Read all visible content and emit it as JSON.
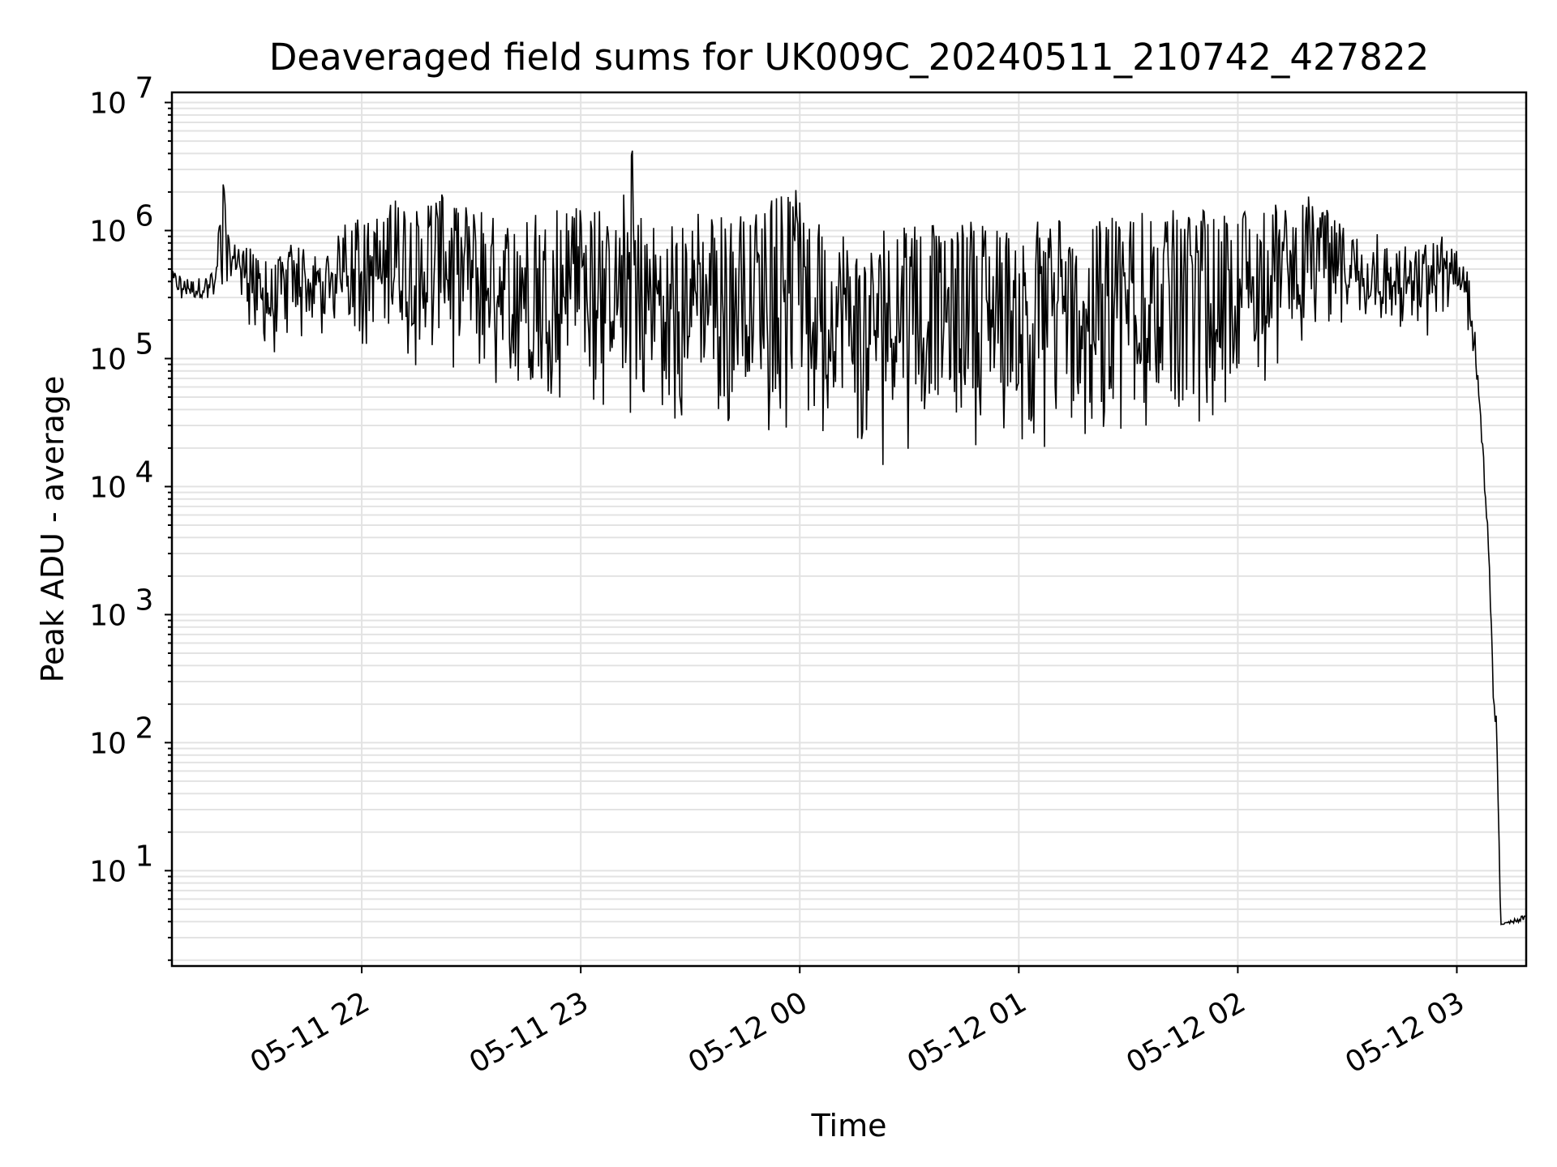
{
  "chart_data": {
    "type": "line",
    "title": "Deaveraged field sums for UK009C_20240511_210742_427822",
    "xlabel": "Time",
    "ylabel": "Peak ADU - average",
    "xscale": "time",
    "yscale": "log",
    "xlim": [
      "2024-05-11 21:08",
      "2024-05-12 03:19"
    ],
    "ylim": [
      1.8,
      12000000
    ],
    "grid": true,
    "x_ticks": [
      {
        "time": "2024-05-11 22:00",
        "label": "05-11 22"
      },
      {
        "time": "2024-05-11 23:00",
        "label": "05-11 23"
      },
      {
        "time": "2024-05-12 00:00",
        "label": "05-12 00"
      },
      {
        "time": "2024-05-12 01:00",
        "label": "05-12 01"
      },
      {
        "time": "2024-05-12 02:00",
        "label": "05-12 02"
      },
      {
        "time": "2024-05-12 03:00",
        "label": "05-12 03"
      }
    ],
    "y_ticks": [
      {
        "value": 10,
        "base": "10",
        "exp": "1"
      },
      {
        "value": 100,
        "base": "10",
        "exp": "2"
      },
      {
        "value": 1000,
        "base": "10",
        "exp": "3"
      },
      {
        "value": 10000,
        "base": "10",
        "exp": "4"
      },
      {
        "value": 100000,
        "base": "10",
        "exp": "5"
      },
      {
        "value": 1000000,
        "base": "10",
        "exp": "6"
      },
      {
        "value": 10000000,
        "base": "10",
        "exp": "7"
      }
    ],
    "series": [
      {
        "color": "#000000",
        "upper_envelope": [
          [
            "2024-05-11 21:08",
            500000
          ],
          [
            "2024-05-11 21:12",
            420000
          ],
          [
            "2024-05-11 21:16",
            450000
          ],
          [
            "2024-05-11 21:20",
            480000
          ],
          [
            "2024-05-11 21:22",
            3700000
          ],
          [
            "2024-05-11 21:24",
            650000
          ],
          [
            "2024-05-11 21:26",
            1000000
          ],
          [
            "2024-05-11 21:30",
            700000
          ],
          [
            "2024-05-11 21:35",
            600000
          ],
          [
            "2024-05-11 21:40",
            800000
          ],
          [
            "2024-05-11 21:45",
            700000
          ],
          [
            "2024-05-11 21:50",
            800000
          ],
          [
            "2024-05-11 21:55",
            1100000
          ],
          [
            "2024-05-11 22:00",
            1400000
          ],
          [
            "2024-05-11 22:05",
            1400000
          ],
          [
            "2024-05-11 22:08",
            1600000
          ],
          [
            "2024-05-11 22:12",
            2800000
          ],
          [
            "2024-05-11 22:16",
            1500000
          ],
          [
            "2024-05-11 22:20",
            2100000
          ],
          [
            "2024-05-11 22:30",
            1600000
          ],
          [
            "2024-05-11 22:40",
            1600000
          ],
          [
            "2024-05-11 22:50",
            1600000
          ],
          [
            "2024-05-11 23:00",
            1500000
          ],
          [
            "2024-05-11 23:10",
            1400000
          ],
          [
            "2024-05-11 23:14",
            6000000
          ],
          [
            "2024-05-11 23:16",
            1400000
          ],
          [
            "2024-05-11 23:30",
            1400000
          ],
          [
            "2024-05-11 23:45",
            1400000
          ],
          [
            "2024-05-11 23:59",
            2100000
          ],
          [
            "2024-05-12 00:02",
            1200000
          ],
          [
            "2024-05-12 00:15",
            1100000
          ],
          [
            "2024-05-12 00:30",
            1100000
          ],
          [
            "2024-05-12 00:45",
            1200000
          ],
          [
            "2024-05-12 01:00",
            1300000
          ],
          [
            "2024-05-12 01:15",
            1300000
          ],
          [
            "2024-05-12 01:30",
            1400000
          ],
          [
            "2024-05-12 01:45",
            1500000
          ],
          [
            "2024-05-12 02:00",
            1600000
          ],
          [
            "2024-05-12 02:15",
            1800000
          ],
          [
            "2024-05-12 02:20",
            1900000
          ],
          [
            "2024-05-12 02:30",
            1200000
          ],
          [
            "2024-05-12 02:40",
            900000
          ],
          [
            "2024-05-12 02:50",
            800000
          ],
          [
            "2024-05-12 02:58",
            1100000
          ],
          [
            "2024-05-12 03:01",
            600000
          ],
          [
            "2024-05-12 03:04",
            450000
          ],
          [
            "2024-05-12 03:06",
            60000
          ],
          [
            "2024-05-12 03:08",
            10000
          ],
          [
            "2024-05-12 03:10",
            500
          ],
          [
            "2024-05-12 03:11",
            140
          ],
          [
            "2024-05-12 03:12",
            3.8
          ],
          [
            "2024-05-12 03:19",
            4.6
          ]
        ],
        "lower_envelope": [
          [
            "2024-05-11 21:08",
            300000
          ],
          [
            "2024-05-11 21:15",
            250000
          ],
          [
            "2024-05-11 21:20",
            300000
          ],
          [
            "2024-05-11 21:25",
            400000
          ],
          [
            "2024-05-11 21:30",
            150000
          ],
          [
            "2024-05-11 21:33",
            75000
          ],
          [
            "2024-05-11 21:40",
            120000
          ],
          [
            "2024-05-11 21:50",
            150000
          ],
          [
            "2024-05-11 21:55",
            250000
          ],
          [
            "2024-05-11 22:00",
            130000
          ],
          [
            "2024-05-11 22:05",
            75000
          ],
          [
            "2024-05-11 22:15",
            80000
          ],
          [
            "2024-05-11 22:30",
            60000
          ],
          [
            "2024-05-11 22:45",
            55000
          ],
          [
            "2024-05-11 23:00",
            45000
          ],
          [
            "2024-05-11 23:10",
            40000
          ],
          [
            "2024-05-11 23:20",
            30000
          ],
          [
            "2024-05-11 23:30",
            32000
          ],
          [
            "2024-05-11 23:45",
            30000
          ],
          [
            "2024-05-11 23:55",
            24000
          ],
          [
            "2024-05-12 00:10",
            22000
          ],
          [
            "2024-05-12 00:22",
            14000
          ],
          [
            "2024-05-12 00:30",
            20000
          ],
          [
            "2024-05-12 00:40",
            17000
          ],
          [
            "2024-05-12 00:50",
            22000
          ],
          [
            "2024-05-12 01:00",
            20000
          ],
          [
            "2024-05-12 01:10",
            18000
          ],
          [
            "2024-05-12 01:20",
            24000
          ],
          [
            "2024-05-12 01:30",
            25000
          ],
          [
            "2024-05-12 01:45",
            30000
          ],
          [
            "2024-05-12 01:55",
            35000
          ],
          [
            "2024-05-12 02:05",
            55000
          ],
          [
            "2024-05-12 02:15",
            120000
          ],
          [
            "2024-05-12 02:30",
            160000
          ],
          [
            "2024-05-12 02:45",
            150000
          ],
          [
            "2024-05-12 02:55",
            140000
          ],
          [
            "2024-05-12 03:00",
            300000
          ],
          [
            "2024-05-12 03:03",
            160000
          ],
          [
            "2024-05-12 03:06",
            50000
          ],
          [
            "2024-05-12 03:08",
            6000
          ],
          [
            "2024-05-12 03:10",
            200
          ],
          [
            "2024-05-12 03:11",
            80
          ],
          [
            "2024-05-12 03:12",
            3.8
          ],
          [
            "2024-05-12 03:19",
            3.8
          ]
        ]
      }
    ]
  }
}
